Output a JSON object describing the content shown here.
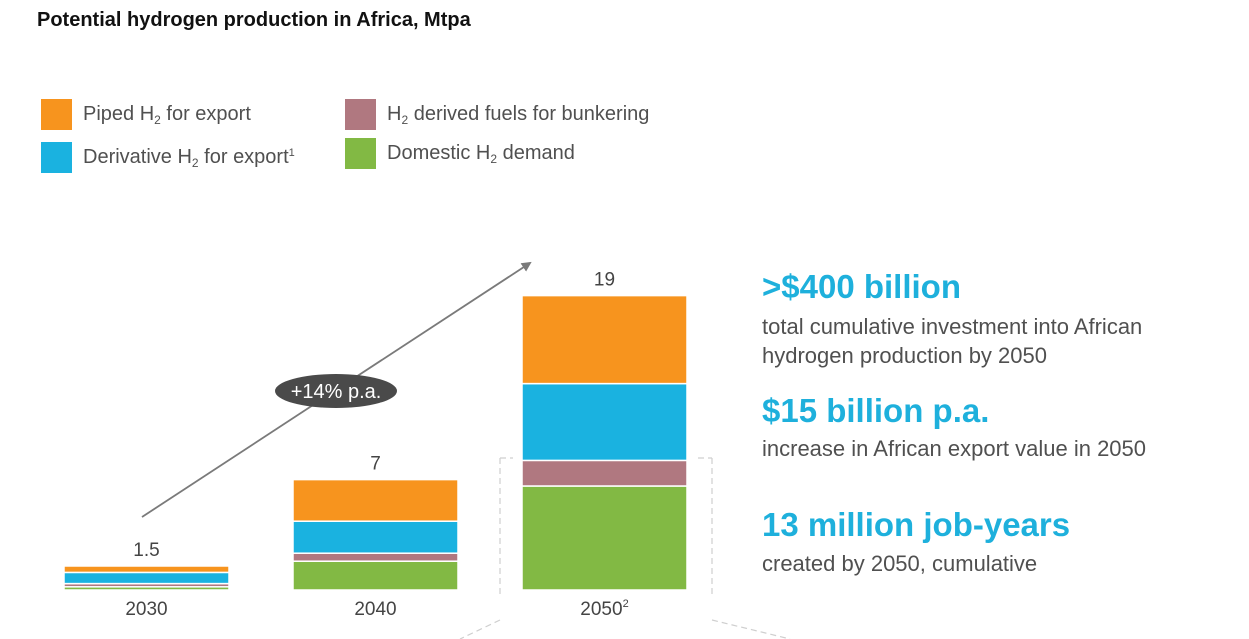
{
  "title": "Potential hydrogen production in Africa, Mtpa",
  "legend": [
    {
      "pre": "Piped H",
      "sub": "2",
      "post": " for export",
      "sup": "",
      "color": "#f7941e"
    },
    {
      "pre": "Derivative H",
      "sub": "2",
      "post": " for export",
      "sup": "1",
      "color": "#1ab2e0"
    },
    {
      "pre": "H",
      "sub": "2",
      "post": " derived fuels for bunkering",
      "sup": "",
      "color": "#b07880"
    },
    {
      "pre": "Domestic H",
      "sub": "2",
      "post": " demand",
      "sup": "",
      "color": "#82b944"
    }
  ],
  "chart_data": {
    "type": "bar",
    "stacked": true,
    "categories": [
      "2030",
      "2040",
      "2050"
    ],
    "category_superscripts": [
      "",
      "",
      "2"
    ],
    "totals": [
      "1.5",
      "7",
      "19"
    ],
    "series": [
      {
        "name": "Domestic H2 demand",
        "color": "#82b944",
        "values": [
          0.2,
          1.8,
          6.5
        ]
      },
      {
        "name": "H2 derived fuels for bunkering",
        "color": "#b07880",
        "values": [
          0.2,
          0.5,
          1.6
        ]
      },
      {
        "name": "Derivative H2 for export",
        "color": "#1ab2e0",
        "values": [
          0.7,
          2.0,
          4.8
        ]
      },
      {
        "name": "Piped H2 for export",
        "color": "#f7941e",
        "values": [
          0.4,
          2.6,
          5.5
        ]
      }
    ],
    "growth_label": "+14% p.a."
  },
  "stats": [
    {
      "headline": ">$400 billion",
      "text": "total cumulative investment into African hydrogen production by 2050"
    },
    {
      "headline": "$15 billion p.a.",
      "text": "increase in African export value in 2050"
    },
    {
      "headline": "13 million job-years",
      "text": "created by 2050, cumulative"
    }
  ]
}
